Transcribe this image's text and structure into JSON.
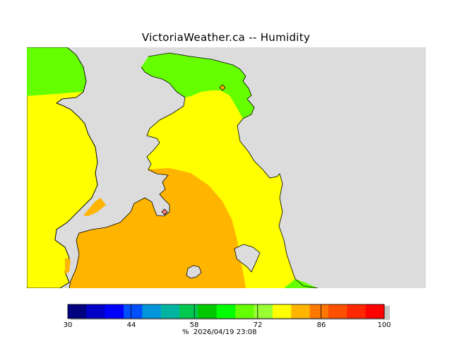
{
  "title": "VictoriaWeather.ca -- Humidity",
  "colors": {
    "land_background": "#dcdcdc",
    "yellow": "#ffff00",
    "orange": "#ffb400",
    "green": "#66ff00",
    "light_green": "#99ff00",
    "coast": "#000000"
  },
  "colorbar": {
    "min": 30,
    "max": 100,
    "tick_labels": [
      "30",
      "44",
      "58",
      "72",
      "86",
      "100"
    ],
    "swatches": [
      "#000080",
      "#0000c8",
      "#0000ff",
      "#0050ff",
      "#0096dc",
      "#00b4a0",
      "#00c850",
      "#00c800",
      "#00ff00",
      "#66ff00",
      "#99ff33",
      "#ffff00",
      "#ffb400",
      "#ff7800",
      "#ff5000",
      "#ff2800",
      "#ff0000"
    ]
  },
  "footer": {
    "unit": "%",
    "timestamp": "2026/04/19 23:08"
  },
  "markers": [
    {
      "name": "station-north",
      "shape": "diamond"
    },
    {
      "name": "station-south",
      "shape": "diamond"
    }
  ]
}
